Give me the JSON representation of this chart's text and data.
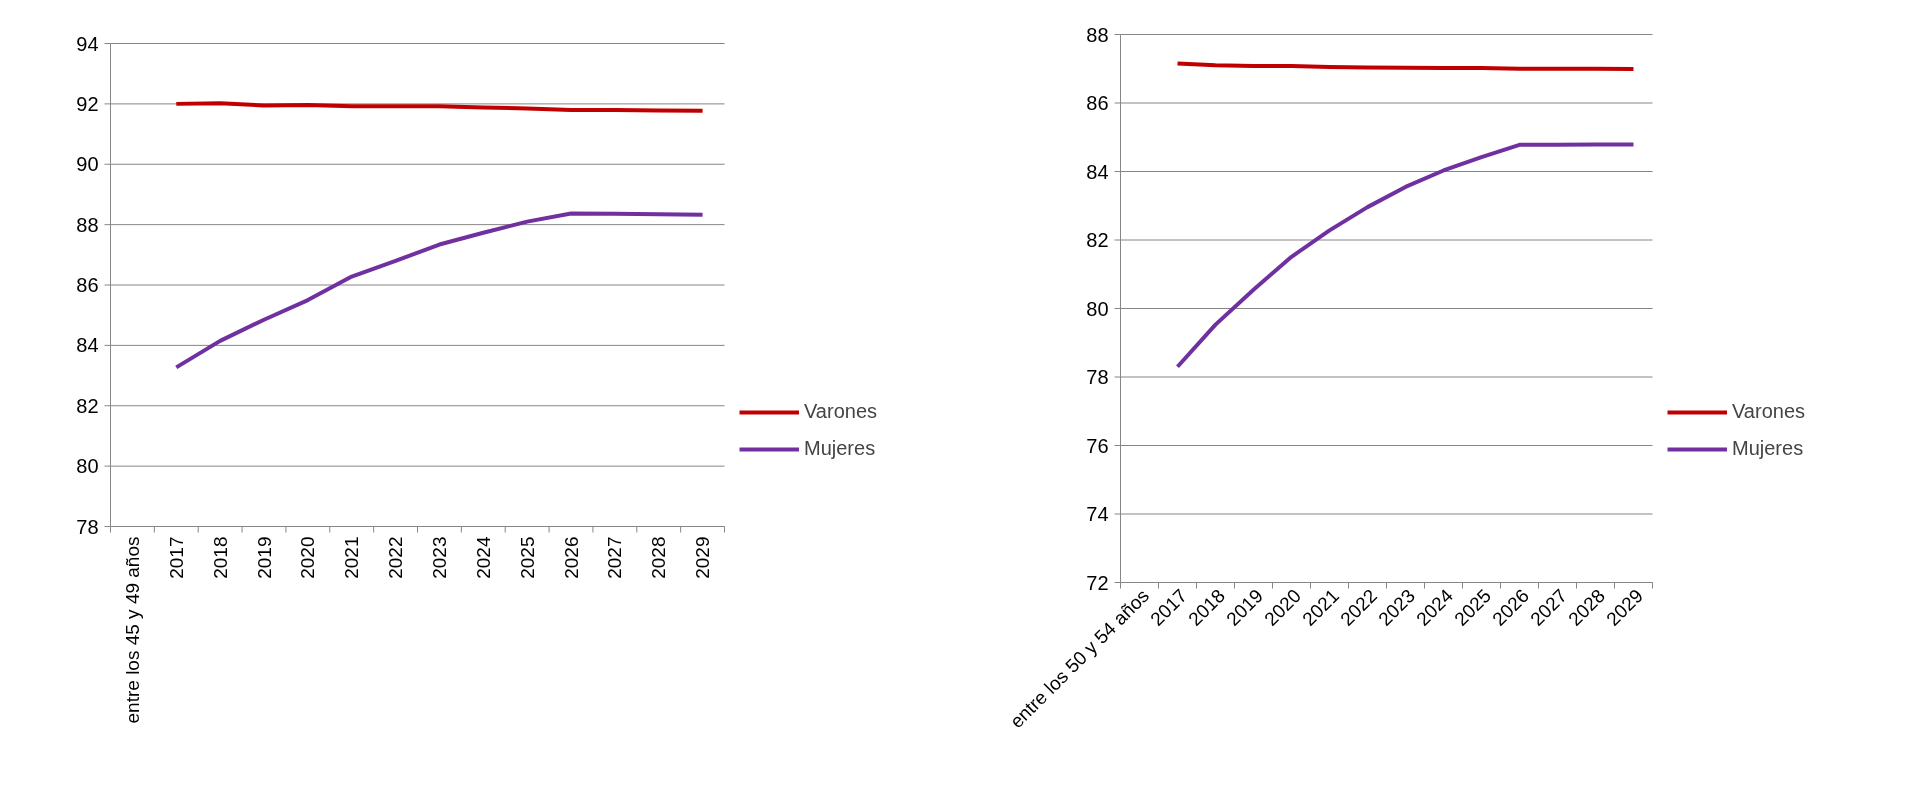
{
  "chart_data": [
    {
      "type": "line",
      "categories": [
        "entre los 45 y 49 años",
        "2017",
        "2018",
        "2019",
        "2020",
        "2021",
        "2022",
        "2023",
        "2024",
        "2025",
        "2026",
        "2027",
        "2028",
        "2029"
      ],
      "series": [
        {
          "name": "Varones",
          "color": "#c00000",
          "values": [
            null,
            92.0,
            92.02,
            91.95,
            91.96,
            91.92,
            91.92,
            91.92,
            91.88,
            91.85,
            91.8,
            91.8,
            91.78,
            91.77
          ]
        },
        {
          "name": "Mujeres",
          "color": "#7030a0",
          "values": [
            null,
            83.27,
            84.15,
            84.85,
            85.5,
            86.28,
            86.8,
            87.34,
            87.73,
            88.1,
            88.37,
            88.36,
            88.34,
            88.33
          ]
        }
      ],
      "ylim": [
        78,
        94
      ],
      "yticks": [
        78,
        80,
        82,
        84,
        86,
        88,
        90,
        92,
        94
      ],
      "grid": "y",
      "legend": "right"
    },
    {
      "type": "line",
      "categories": [
        "entre los 50 y 54 años",
        "2017",
        "2018",
        "2019",
        "2020",
        "2021",
        "2022",
        "2023",
        "2024",
        "2025",
        "2026",
        "2027",
        "2028",
        "2029"
      ],
      "series": [
        {
          "name": "Varones",
          "color": "#c00000",
          "values": [
            null,
            87.15,
            87.1,
            87.08,
            87.08,
            87.05,
            87.04,
            87.03,
            87.02,
            87.02,
            87.0,
            87.0,
            87.0,
            86.99
          ]
        },
        {
          "name": "Mujeres",
          "color": "#7030a0",
          "values": [
            null,
            78.3,
            79.53,
            80.55,
            81.51,
            82.28,
            82.96,
            83.55,
            84.03,
            84.42,
            84.78,
            84.78,
            84.79,
            84.79
          ]
        }
      ],
      "ylim": [
        72,
        88
      ],
      "yticks": [
        72,
        74,
        76,
        78,
        80,
        82,
        84,
        86,
        88
      ],
      "grid": "y",
      "legend": "right"
    }
  ]
}
